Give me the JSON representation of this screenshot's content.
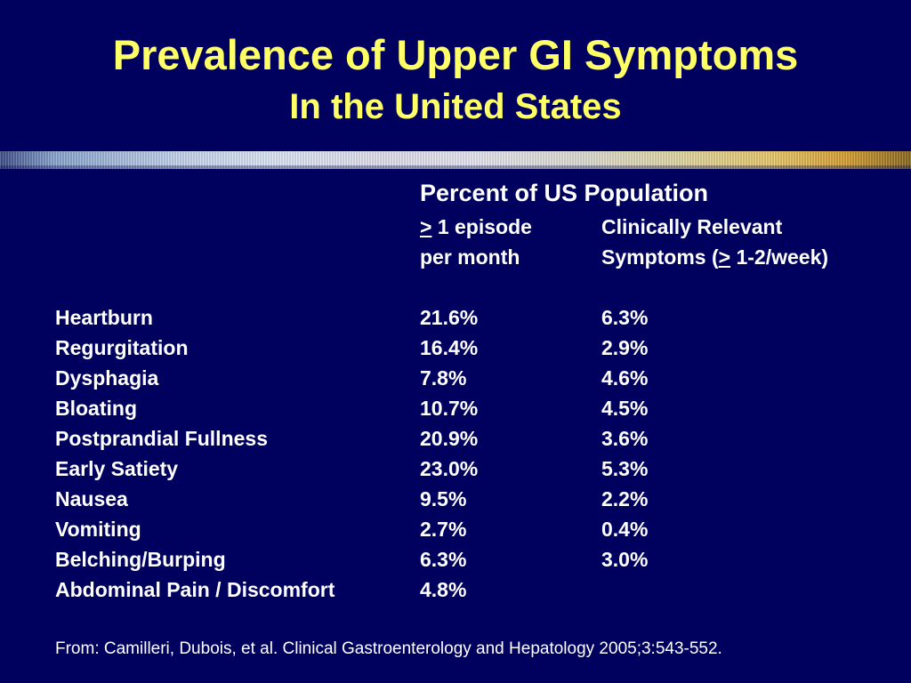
{
  "slide": {
    "title": "Prevalence of Upper GI Symptoms",
    "subtitle": "In the United States",
    "colors": {
      "background": "#00005e",
      "title": "#ffff66",
      "text": "#ffffff"
    }
  },
  "table": {
    "header_title": "Percent of US Population",
    "col1": {
      "symbol": ">",
      "line1_rest": " 1 episode",
      "line2": "per month"
    },
    "col2": {
      "line1": "Clinically Relevant",
      "line2_pre": "Symptoms (",
      "symbol": ">",
      "line2_post": " 1-2/week)"
    },
    "rows": [
      {
        "symptom": "Heartburn",
        "episode": "21.6%",
        "clinical": "6.3%"
      },
      {
        "symptom": "Regurgitation",
        "episode": "16.4%",
        "clinical": "2.9%"
      },
      {
        "symptom": "Dysphagia",
        "episode": "7.8%",
        "clinical": "4.6%"
      },
      {
        "symptom": "Bloating",
        "episode": "10.7%",
        "clinical": "4.5%"
      },
      {
        "symptom": "Postprandial Fullness",
        "episode": "20.9%",
        "clinical": "3.6%"
      },
      {
        "symptom": "Early Satiety",
        "episode": "23.0%",
        "clinical": "5.3%"
      },
      {
        "symptom": "Nausea",
        "episode": "9.5%",
        "clinical": "2.2%"
      },
      {
        "symptom": "Vomiting",
        "episode": "2.7%",
        "clinical": "0.4%"
      },
      {
        "symptom": "Belching/Burping",
        "episode": "6.3%",
        "clinical": "3.0%"
      },
      {
        "symptom": "Abdominal Pain / Discomfort",
        "episode": "4.8%",
        "clinical": ""
      }
    ]
  },
  "citation": "From: Camilleri, Dubois, et al.  Clinical Gastroenterology and Hepatology 2005;3:543-552."
}
